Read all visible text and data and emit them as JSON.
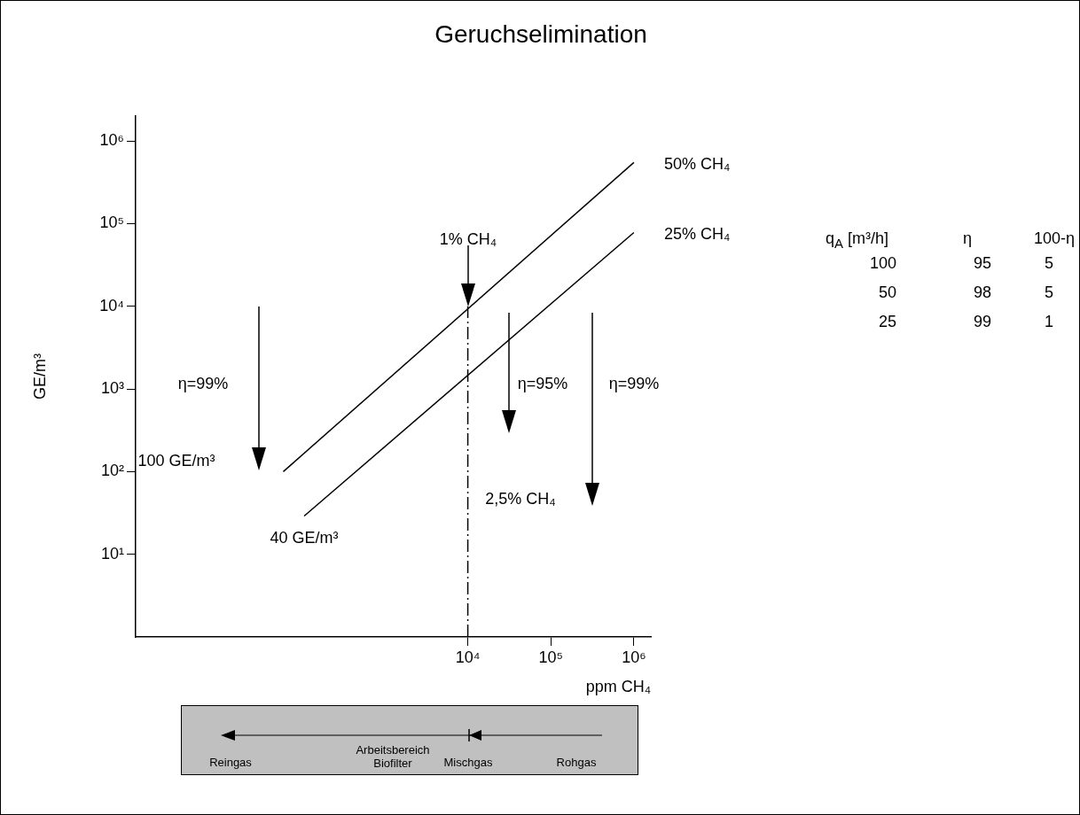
{
  "chart_data": [
    {
      "type": "line",
      "title": "Geruchselimination",
      "xlabel": "ppm CH₄",
      "ylabel": "GE/m³",
      "log": "xy",
      "xlim": [
        1,
        1600000
      ],
      "ylim": [
        1,
        2000000
      ],
      "xticks": [
        {
          "value": 10000,
          "label": "10⁴"
        },
        {
          "value": 100000,
          "label": "10⁵"
        },
        {
          "value": 1000000,
          "label": "10⁶"
        }
      ],
      "yticks": [
        {
          "value": 10,
          "label": "10¹"
        },
        {
          "value": 100,
          "label": "10²"
        },
        {
          "value": 1000,
          "label": "10³"
        },
        {
          "value": 10000,
          "label": "10⁴"
        },
        {
          "value": 100000,
          "label": "10⁵"
        },
        {
          "value": 1000000,
          "label": "10⁶"
        }
      ],
      "grid": false,
      "legend": false,
      "marker": "none",
      "series": [
        {
          "name": "50% CH₄",
          "color": "#000000",
          "x": [
            60,
            1000000
          ],
          "values": [
            100,
            550000
          ]
        },
        {
          "name": "25% CH₄",
          "color": "#000000",
          "x": [
            107,
            1000000
          ],
          "values": [
            29,
            78000
          ]
        },
        {
          "color": "#000000",
          "line_style": "dashed",
          "x": [
            10000,
            10000
          ],
          "values": [
            1,
            10000
          ]
        }
      ],
      "annotations": [
        "1% CH₄",
        "η=99%",
        "100 GE/m³",
        "40 GE/m³",
        "η=95%",
        "2,5% CH₄",
        "η=99%"
      ]
    },
    {
      "type": "other",
      "annotations": [
        "q$_{A}$ [m³/h]",
        "η",
        "100-η",
        "100",
        "95",
        "5",
        "50",
        "98",
        "5",
        "25",
        "99",
        "1"
      ]
    },
    {
      "type": "other",
      "annotations": [
        "Reingas",
        "Arbeitsbereich Biofilter",
        "Mischgas",
        "Rohgas"
      ]
    }
  ]
}
